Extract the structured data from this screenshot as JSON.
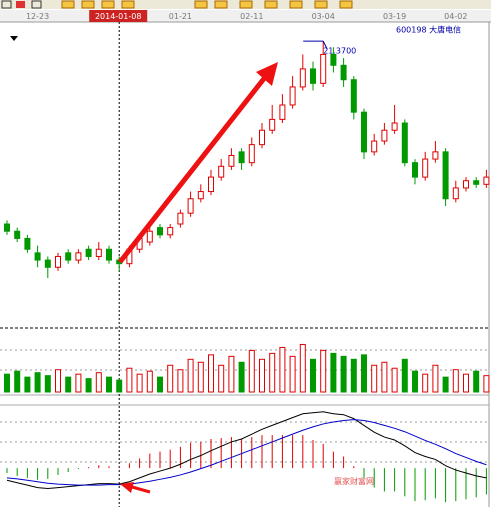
{
  "chart_data": {
    "type": "candlestick",
    "stock": "600198 大唐电信",
    "high_label": "21.3700",
    "watermark": "赢家财富网",
    "categories": [
      null,
      null,
      null,
      "12-23",
      null,
      null,
      null,
      null,
      null,
      null,
      null,
      "2014-01-08",
      null,
      null,
      null,
      null,
      null,
      "01-21",
      null,
      null,
      null,
      null,
      null,
      null,
      "02-11",
      null,
      null,
      null,
      null,
      null,
      null,
      "03-04",
      null,
      null,
      null,
      null,
      null,
      null,
      "03-19",
      null,
      null,
      null,
      null,
      null,
      "04-02",
      null,
      null,
      null
    ],
    "up_color": "#e00000",
    "down_color": "#009900",
    "ylim": [
      13.5,
      21.9
    ],
    "candles": [
      [
        16.3,
        16.1,
        16.4,
        16.0
      ],
      [
        16.1,
        15.9,
        16.2,
        15.8
      ],
      [
        15.9,
        15.6,
        16.0,
        15.5
      ],
      [
        15.5,
        15.3,
        15.7,
        15.1
      ],
      [
        15.3,
        15.1,
        15.4,
        14.8
      ],
      [
        15.1,
        15.4,
        15.5,
        15.0
      ],
      [
        15.5,
        15.3,
        15.6,
        15.2
      ],
      [
        15.3,
        15.5,
        15.6,
        15.2
      ],
      [
        15.6,
        15.4,
        15.7,
        15.3
      ],
      [
        15.4,
        15.6,
        15.8,
        15.3
      ],
      [
        15.6,
        15.3,
        15.7,
        15.2
      ],
      [
        15.3,
        15.2,
        15.4,
        15.0
      ],
      [
        15.2,
        15.6,
        15.7,
        15.1
      ],
      [
        15.6,
        15.9,
        16.0,
        15.5
      ],
      [
        15.8,
        16.1,
        16.2,
        15.7
      ],
      [
        16.2,
        16.0,
        16.3,
        15.9
      ],
      [
        16.0,
        16.2,
        16.3,
        15.9
      ],
      [
        16.3,
        16.6,
        16.7,
        16.2
      ],
      [
        16.6,
        17.0,
        17.2,
        16.5
      ],
      [
        17.0,
        17.2,
        17.4,
        16.9
      ],
      [
        17.2,
        17.6,
        17.8,
        17.1
      ],
      [
        17.6,
        17.9,
        18.1,
        17.5
      ],
      [
        17.9,
        18.2,
        18.4,
        17.8
      ],
      [
        18.3,
        18.0,
        18.4,
        17.8
      ],
      [
        18.0,
        18.5,
        18.7,
        17.9
      ],
      [
        18.5,
        18.9,
        19.1,
        18.4
      ],
      [
        18.9,
        19.2,
        19.6,
        18.8
      ],
      [
        19.2,
        19.6,
        19.9,
        19.1
      ],
      [
        19.6,
        20.1,
        20.4,
        19.5
      ],
      [
        20.1,
        20.6,
        21.0,
        20.0
      ],
      [
        20.6,
        20.2,
        20.8,
        20.0
      ],
      [
        20.2,
        21.0,
        21.37,
        20.1
      ],
      [
        21.0,
        20.7,
        21.2,
        20.5
      ],
      [
        20.7,
        20.3,
        20.9,
        20.1
      ],
      [
        20.3,
        19.4,
        20.4,
        19.2
      ],
      [
        19.4,
        18.3,
        19.5,
        18.1
      ],
      [
        18.3,
        18.6,
        18.8,
        18.2
      ],
      [
        18.6,
        18.9,
        19.1,
        18.5
      ],
      [
        18.9,
        19.1,
        19.6,
        18.8
      ],
      [
        19.1,
        18.0,
        19.2,
        17.9
      ],
      [
        18.0,
        17.6,
        18.1,
        17.4
      ],
      [
        17.6,
        18.1,
        18.3,
        17.5
      ],
      [
        18.1,
        18.3,
        18.6,
        18.0
      ],
      [
        18.3,
        17.0,
        18.4,
        16.8
      ],
      [
        17.0,
        17.3,
        17.5,
        16.9
      ],
      [
        17.3,
        17.5,
        17.6,
        17.2
      ],
      [
        17.5,
        17.4,
        17.6,
        17.3
      ],
      [
        17.4,
        17.6,
        17.8,
        17.3
      ]
    ],
    "volume_ylim": [
      0,
      35
    ],
    "volume": [
      12,
      14,
      10,
      13,
      11,
      15,
      10,
      12,
      9,
      13,
      10,
      8,
      16,
      12,
      14,
      10,
      18,
      15,
      22,
      20,
      25,
      18,
      24,
      20,
      28,
      22,
      26,
      30,
      24,
      32,
      22,
      28,
      26,
      24,
      22,
      25,
      18,
      20,
      16,
      22,
      14,
      12,
      18,
      10,
      15,
      12,
      14,
      11
    ],
    "macd_ylim": [
      -0.8,
      1.3
    ],
    "macd_series": [
      {
        "color": "#000000",
        "values": [
          -0.25,
          -0.3,
          -0.35,
          -0.4,
          -0.42,
          -0.4,
          -0.38,
          -0.36,
          -0.34,
          -0.32,
          -0.32,
          -0.33,
          -0.28,
          -0.2,
          -0.12,
          -0.06,
          0.0,
          0.08,
          0.18,
          0.26,
          0.36,
          0.45,
          0.54,
          0.6,
          0.7,
          0.8,
          0.88,
          0.96,
          1.04,
          1.12,
          1.14,
          1.16,
          1.12,
          1.1,
          1.02,
          0.88,
          0.74,
          0.64,
          0.58,
          0.46,
          0.32,
          0.24,
          0.18,
          0.05,
          -0.04,
          -0.1,
          -0.16,
          -0.2
        ]
      },
      {
        "color": "#0000cc",
        "values": [
          -0.2,
          -0.22,
          -0.25,
          -0.28,
          -0.31,
          -0.33,
          -0.34,
          -0.35,
          -0.35,
          -0.35,
          -0.34,
          -0.34,
          -0.33,
          -0.3,
          -0.27,
          -0.23,
          -0.19,
          -0.14,
          -0.08,
          -0.01,
          0.06,
          0.14,
          0.22,
          0.3,
          0.38,
          0.46,
          0.54,
          0.62,
          0.7,
          0.78,
          0.85,
          0.91,
          0.95,
          0.98,
          1.0,
          0.98,
          0.94,
          0.88,
          0.82,
          0.75,
          0.66,
          0.57,
          0.49,
          0.4,
          0.3,
          0.22,
          0.14,
          0.07
        ]
      }
    ],
    "macd_hist": [
      -0.1,
      -0.16,
      -0.2,
      -0.24,
      -0.22,
      -0.14,
      -0.08,
      -0.02,
      0.02,
      0.06,
      0.04,
      0.02,
      0.1,
      0.2,
      0.3,
      0.34,
      0.38,
      0.44,
      0.52,
      0.54,
      0.6,
      0.62,
      0.64,
      0.6,
      0.64,
      0.68,
      0.68,
      0.68,
      0.68,
      0.68,
      0.58,
      0.5,
      0.34,
      0.24,
      0.04,
      -0.2,
      -0.4,
      -0.48,
      -0.48,
      -0.58,
      -0.68,
      -0.66,
      -0.62,
      -0.7,
      -0.68,
      -0.64,
      -0.6,
      -0.54
    ],
    "crosshair_index": 11
  }
}
